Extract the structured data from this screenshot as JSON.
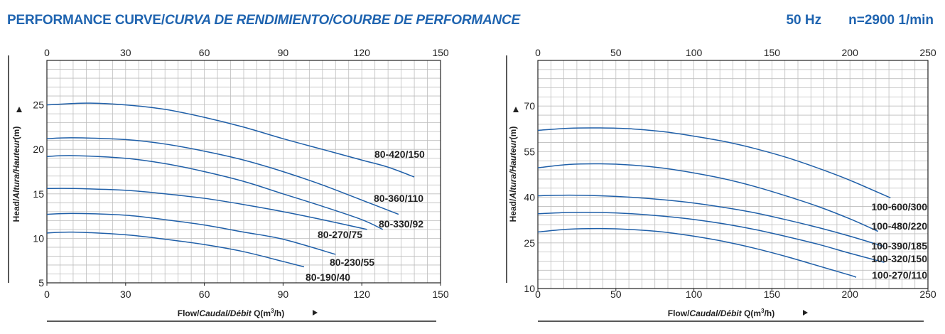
{
  "header": {
    "title_main": "PERFORMANCE CURVE/",
    "title_italic": "CURVA DE RENDIMIENTO/COURBE DE PERFORMANCE",
    "frequency": "50 Hz",
    "speed": "n=2900 1/min"
  },
  "colors": {
    "title": "#1f64b0",
    "curve": "#1f5fa8",
    "grid": "#bdbdbd",
    "axis": "#222222"
  },
  "chart_data": [
    {
      "type": "line",
      "ylabel_bold": "Head/",
      "ylabel_italic": "Altura/Hauteur",
      "ylabel_unit": "(m)",
      "xlabel_bold": "Flow/",
      "xlabel_italic": "Caudal/Débit",
      "xlabel_unit": " Q(m",
      "xlabel_sup": "3",
      "xlabel_end": "/h)",
      "xlim": [
        0,
        150
      ],
      "ylim": [
        5,
        30
      ],
      "xticks": [
        0,
        30,
        60,
        90,
        120,
        150
      ],
      "yticks": [
        5,
        10,
        15,
        20,
        25
      ],
      "grid": true,
      "series": [
        {
          "name": "80-420/150",
          "x": [
            0,
            15,
            30,
            45,
            60,
            75,
            90,
            105,
            120,
            130,
            140
          ],
          "y": [
            25.0,
            25.2,
            25.0,
            24.5,
            23.6,
            22.5,
            21.2,
            20.0,
            18.8,
            18.0,
            16.9
          ]
        },
        {
          "name": "80-360/110",
          "x": [
            0,
            10,
            30,
            45,
            60,
            75,
            90,
            105,
            120,
            134
          ],
          "y": [
            21.2,
            21.3,
            21.1,
            20.6,
            19.8,
            18.8,
            17.5,
            16.0,
            14.3,
            12.7
          ]
        },
        {
          "name": "80-330/92",
          "x": [
            0,
            10,
            30,
            45,
            60,
            75,
            90,
            105,
            120,
            128
          ],
          "y": [
            19.2,
            19.3,
            19.0,
            18.4,
            17.5,
            16.4,
            15.0,
            13.6,
            12.1,
            11.0
          ]
        },
        {
          "name": "80-270/75",
          "x": [
            0,
            10,
            30,
            45,
            60,
            75,
            90,
            105,
            122
          ],
          "y": [
            15.6,
            15.6,
            15.4,
            15.0,
            14.5,
            13.8,
            13.0,
            12.1,
            11.0
          ]
        },
        {
          "name": "80-230/55",
          "x": [
            0,
            10,
            30,
            45,
            60,
            75,
            90,
            110
          ],
          "y": [
            12.7,
            12.8,
            12.6,
            12.1,
            11.5,
            10.7,
            9.9,
            8.2
          ]
        },
        {
          "name": "80-190/40",
          "x": [
            0,
            10,
            30,
            45,
            60,
            75,
            90,
            98
          ],
          "y": [
            10.6,
            10.7,
            10.4,
            9.9,
            9.3,
            8.5,
            7.4,
            6.8
          ]
        }
      ],
      "labels": [
        "80-420/150",
        "80-360/110",
        "80-330/92",
        "80-270/75",
        "80-230/55",
        "80-190/40"
      ]
    },
    {
      "type": "line",
      "ylabel_bold": "Head/",
      "ylabel_italic": "Altura/Hauteur",
      "ylabel_unit": "(m)",
      "xlabel_bold": "Flow/",
      "xlabel_italic": "Caudal/Débit",
      "xlabel_unit": " Q(m",
      "xlabel_sup": "3",
      "xlabel_end": "/h)",
      "xlim": [
        0,
        250
      ],
      "ylim": [
        10,
        85
      ],
      "xticks": [
        0,
        50,
        100,
        150,
        200,
        250
      ],
      "yticks": [
        10,
        25,
        40,
        55,
        70
      ],
      "grid": true,
      "series": [
        {
          "name": "100-600/300",
          "x": [
            0,
            20,
            40,
            60,
            80,
            100,
            120,
            140,
            160,
            180,
            200,
            226
          ],
          "y": [
            62.0,
            62.7,
            62.8,
            62.5,
            61.6,
            60.1,
            58.3,
            55.9,
            53.0,
            49.5,
            45.6,
            39.8
          ]
        },
        {
          "name": "100-480/220",
          "x": [
            0,
            20,
            40,
            60,
            80,
            100,
            120,
            140,
            160,
            180,
            200,
            218
          ],
          "y": [
            49.7,
            50.8,
            51.0,
            50.6,
            49.6,
            48.0,
            46.0,
            43.4,
            40.3,
            36.9,
            32.9,
            28.8
          ]
        },
        {
          "name": "100-390/185",
          "x": [
            0,
            20,
            40,
            60,
            80,
            100,
            120,
            140,
            160,
            180,
            200,
            222
          ],
          "y": [
            40.5,
            40.7,
            40.5,
            40.0,
            39.2,
            38.1,
            36.6,
            34.8,
            32.5,
            30.0,
            27.2,
            23.8
          ]
        },
        {
          "name": "100-320/150",
          "x": [
            0,
            20,
            40,
            60,
            80,
            100,
            120,
            140,
            160,
            180,
            200,
            222
          ],
          "y": [
            34.6,
            35.0,
            35.0,
            34.6,
            33.8,
            32.7,
            31.2,
            29.3,
            27.0,
            24.5,
            21.6,
            18.6
          ]
        },
        {
          "name": "100-270/110",
          "x": [
            0,
            20,
            40,
            60,
            80,
            100,
            120,
            140,
            160,
            180,
            200,
            204
          ],
          "y": [
            28.6,
            29.5,
            29.7,
            29.4,
            28.6,
            27.2,
            25.4,
            23.1,
            20.4,
            17.4,
            14.4,
            13.7
          ]
        }
      ],
      "labels": [
        "100-600/300",
        "100-480/220",
        "100-390/185",
        "100-320/150",
        "100-270/110"
      ]
    }
  ]
}
